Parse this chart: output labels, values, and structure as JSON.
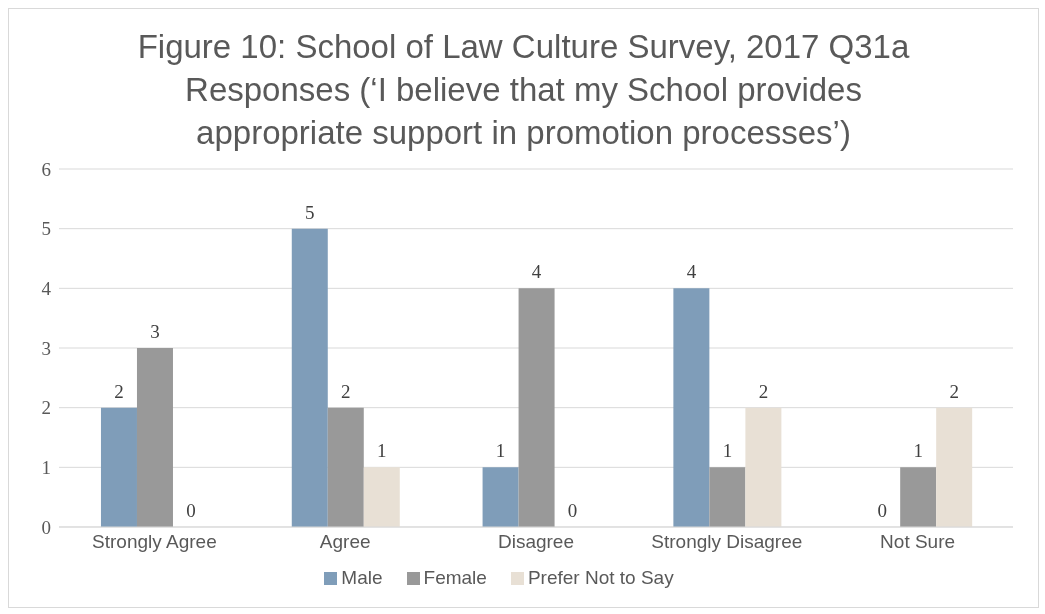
{
  "chart_data": {
    "type": "bar",
    "title": "Figure 10: School of Law Culture Survey, 2017 Q31a Responses (‘I believe that my School provides appropriate support in promotion processes’)",
    "categories": [
      "Strongly Agree",
      "Agree",
      "Disagree",
      "Strongly Disagree",
      "Not Sure"
    ],
    "series": [
      {
        "name": "Male",
        "color": "#7f9db9",
        "values": [
          2,
          5,
          1,
          4,
          0
        ]
      },
      {
        "name": "Female",
        "color": "#999999",
        "values": [
          3,
          2,
          4,
          1,
          1
        ]
      },
      {
        "name": "Prefer Not to Say",
        "color": "#e8e0d5",
        "values": [
          0,
          1,
          0,
          2,
          2
        ]
      }
    ],
    "ylim": [
      0,
      6
    ],
    "yticks": [
      0,
      1,
      2,
      3,
      4,
      5,
      6
    ],
    "grid": "y",
    "legend": "bottom",
    "data_labels": true
  }
}
